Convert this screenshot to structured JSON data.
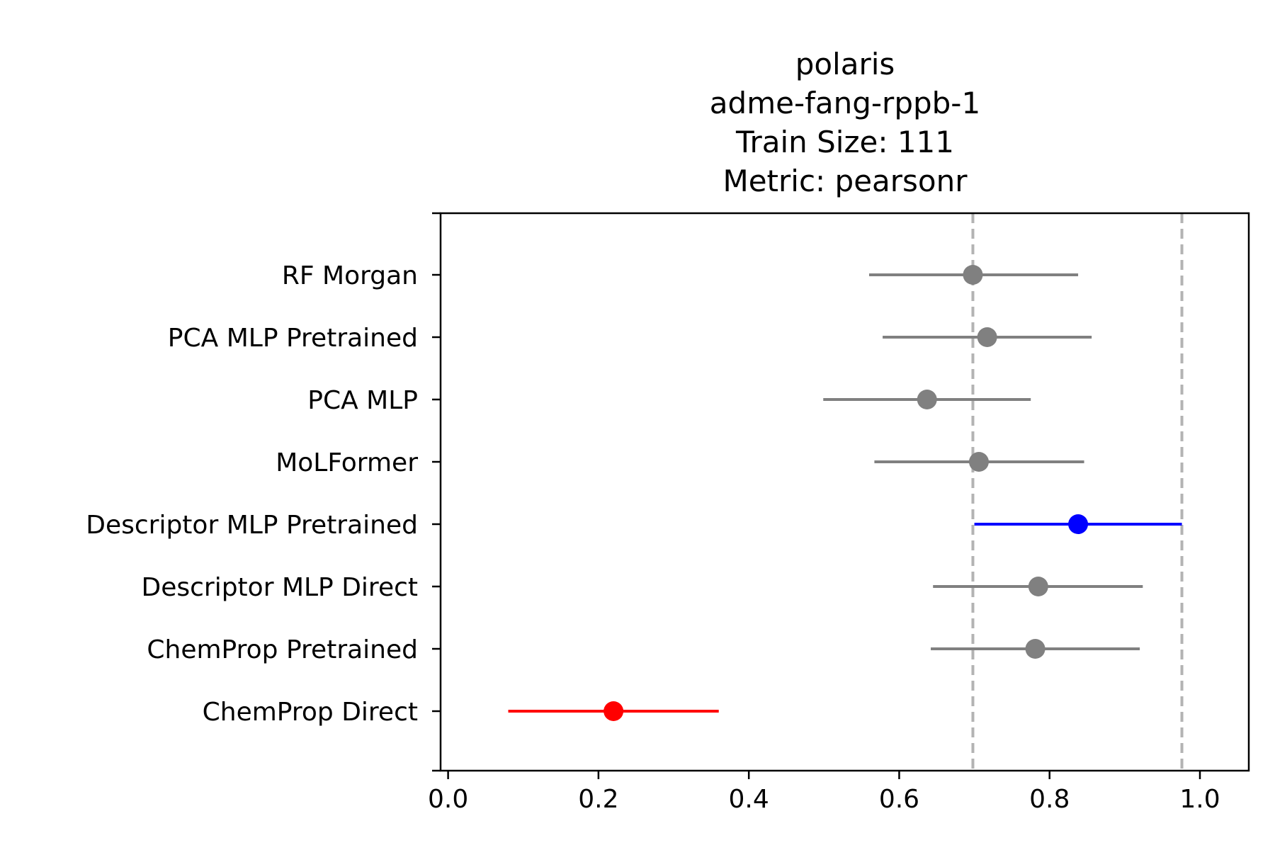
{
  "chart_data": {
    "type": "scatter",
    "title_lines": [
      "polaris",
      "adme-fang-rppb-1",
      "Train Size: 111",
      "Metric: pearsonr"
    ],
    "xlabel": "",
    "ylabel": "",
    "xlim": [
      -0.01,
      1.065
    ],
    "x_ticks": [
      0.0,
      0.2,
      0.4,
      0.6,
      0.8,
      1.0
    ],
    "x_tick_labels": [
      "0.0",
      "0.2",
      "0.4",
      "0.6",
      "0.8",
      "1.0"
    ],
    "reference_lines": [
      0.698,
      0.976
    ],
    "reference_line_color": "#b3b3b3",
    "grid": false,
    "legend": "none",
    "categories": [
      "RF Morgan",
      "PCA MLP Pretrained",
      "PCA MLP",
      "MoLFormer",
      "Descriptor MLP Pretrained",
      "Descriptor MLP Direct",
      "ChemProp Pretrained",
      "ChemProp Direct"
    ],
    "points": [
      {
        "label": "RF Morgan",
        "value": 0.698,
        "low": 0.56,
        "high": 0.838,
        "color": "#808080"
      },
      {
        "label": "PCA MLP Pretrained",
        "value": 0.717,
        "low": 0.578,
        "high": 0.856,
        "color": "#808080"
      },
      {
        "label": "PCA MLP",
        "value": 0.637,
        "low": 0.499,
        "high": 0.775,
        "color": "#808080"
      },
      {
        "label": "MoLFormer",
        "value": 0.706,
        "low": 0.567,
        "high": 0.846,
        "color": "#808080"
      },
      {
        "label": "Descriptor MLP Pretrained",
        "value": 0.838,
        "low": 0.7,
        "high": 0.976,
        "color": "#0000ff"
      },
      {
        "label": "Descriptor MLP Direct",
        "value": 0.785,
        "low": 0.645,
        "high": 0.924,
        "color": "#808080"
      },
      {
        "label": "ChemProp Pretrained",
        "value": 0.781,
        "low": 0.642,
        "high": 0.92,
        "color": "#808080"
      },
      {
        "label": "ChemProp Direct",
        "value": 0.22,
        "low": 0.08,
        "high": 0.36,
        "color": "#ff0000"
      }
    ]
  }
}
